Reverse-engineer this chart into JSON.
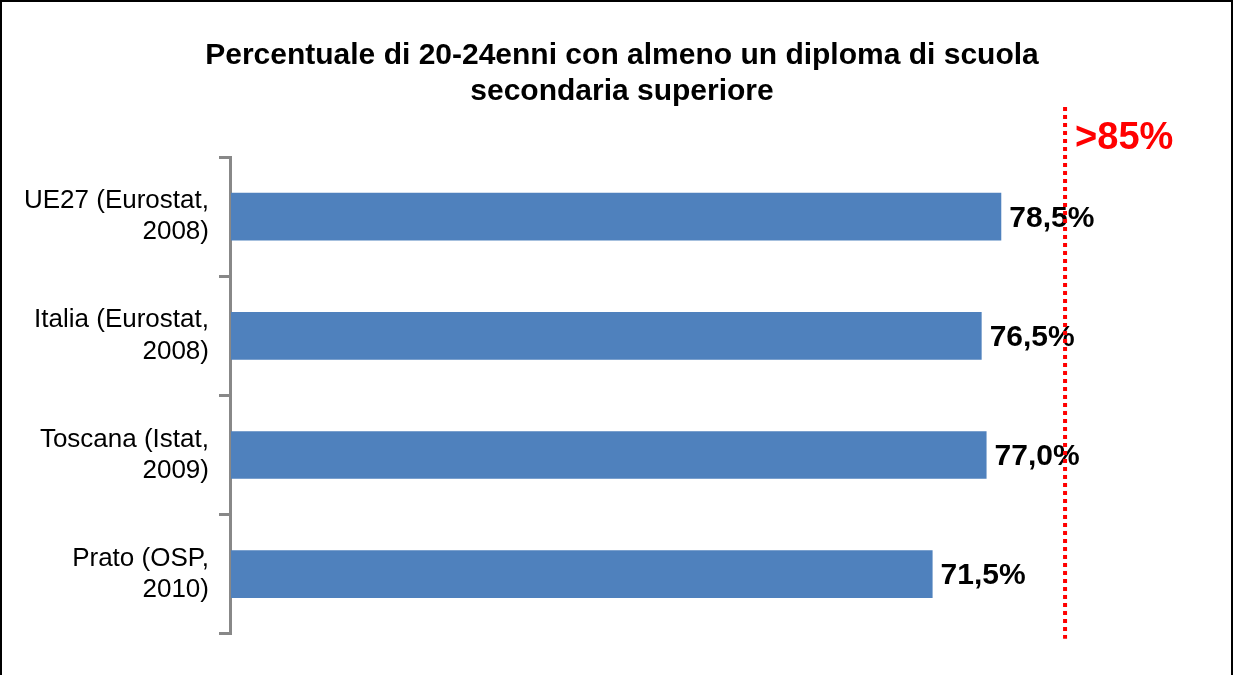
{
  "chart_data": {
    "type": "bar",
    "orientation": "horizontal",
    "title": "Percentuale di 20-24enni con almeno un diploma di scuola secondaria superiore",
    "categories": [
      "UE27 (Eurostat, 2008)",
      "Italia (Eurostat, 2008)",
      "Toscana (Istat, 2009)",
      "Prato (OSP, 2010)"
    ],
    "values": [
      78.5,
      76.5,
      77.0,
      71.5
    ],
    "color": "#4f81bd",
    "value_labels": [
      "78,5%",
      "76,5%",
      "77,0%",
      "71,5%"
    ],
    "tick_labels": "y",
    "legend": false,
    "ref_lines": [
      {
        "axis": "x",
        "value": 85,
        "label": ">85%",
        "color": "#ff0000",
        "line_style": "dotted"
      }
    ]
  }
}
